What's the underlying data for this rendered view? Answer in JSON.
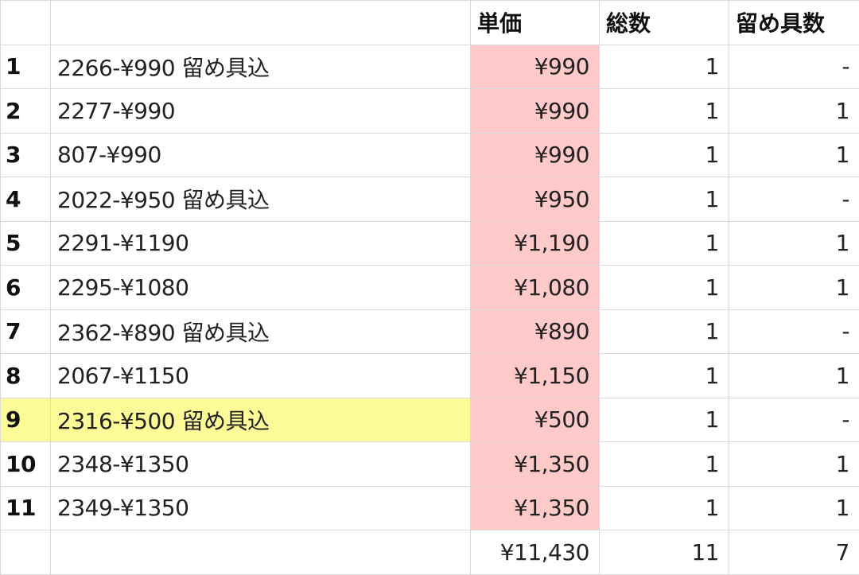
{
  "colors": {
    "price_column": "#fdc9c9",
    "highlight_row": "#fdfb97"
  },
  "headers": [
    "",
    "",
    "単価",
    "総数",
    "留め具数"
  ],
  "rows": [
    {
      "no": "1",
      "name": "2266-¥990 留め具込",
      "price": "¥990",
      "total": "1",
      "fasteners": "-"
    },
    {
      "no": "2",
      "name": "2277-¥990",
      "price": "¥990",
      "total": "1",
      "fasteners": "1"
    },
    {
      "no": "3",
      "name": "807-¥990",
      "price": "¥990",
      "total": "1",
      "fasteners": "1"
    },
    {
      "no": "4",
      "name": "2022-¥950 留め具込",
      "price": "¥950",
      "total": "1",
      "fasteners": "-"
    },
    {
      "no": "5",
      "name": "2291-¥1190",
      "price": "¥1,190",
      "total": "1",
      "fasteners": "1"
    },
    {
      "no": "6",
      "name": "2295-¥1080",
      "price": "¥1,080",
      "total": "1",
      "fasteners": "1"
    },
    {
      "no": "7",
      "name": "2362-¥890 留め具込",
      "price": "¥890",
      "total": "1",
      "fasteners": "-"
    },
    {
      "no": "8",
      "name": "2067-¥1150",
      "price": "¥1,150",
      "total": "1",
      "fasteners": "1"
    },
    {
      "no": "9",
      "name": "2316-¥500 留め具込",
      "price": "¥500",
      "total": "1",
      "fasteners": "-",
      "highlight": true
    },
    {
      "no": "10",
      "name": "2348-¥1350",
      "price": "¥1,350",
      "total": "1",
      "fasteners": "1"
    },
    {
      "no": "11",
      "name": "2349-¥1350",
      "price": "¥1,350",
      "total": "1",
      "fasteners": "1"
    }
  ],
  "totals": {
    "price": "¥11,430",
    "total": "11",
    "fasteners": "7"
  }
}
